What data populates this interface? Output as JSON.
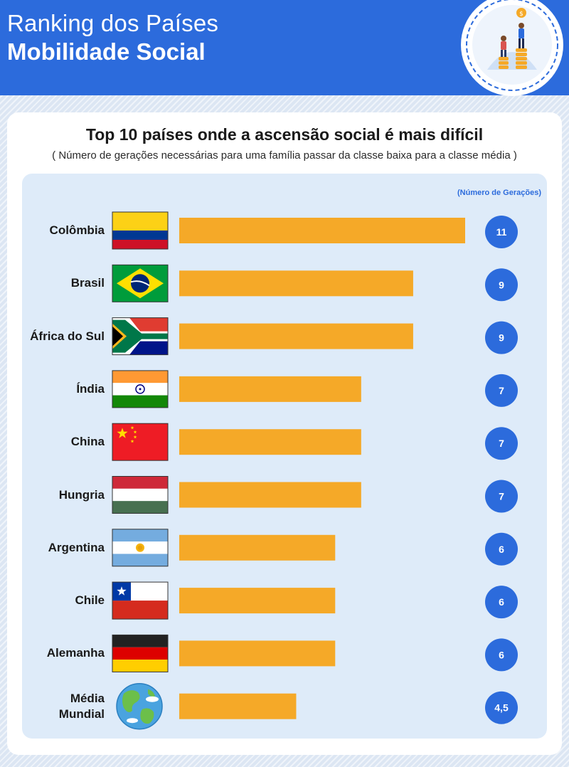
{
  "header": {
    "line1": "Ranking dos Países",
    "line2": "Mobilidade Social"
  },
  "colors": {
    "header_bg": "#2c6bdc",
    "bar": "#f5a928",
    "value_circle": "#2c6bdc",
    "panel": "#deebf9"
  },
  "chart_data": {
    "type": "bar",
    "orientation": "horizontal",
    "title": "Top 10 países onde a ascensão social é mais difícil",
    "subtitle": "( Número de gerações necessárias para uma família passar da classe baixa para a classe média )",
    "value_header": "(Número de Gerações)",
    "categories": [
      "Colômbia",
      "Brasil",
      "África do Sul",
      "Índia",
      "China",
      "Hungria",
      "Argentina",
      "Chile",
      "Alemanha",
      "Média Mundial"
    ],
    "values": [
      11,
      9,
      9,
      7,
      7,
      7,
      6,
      6,
      6,
      4.5
    ],
    "value_labels": [
      "11",
      "9",
      "9",
      "7",
      "7",
      "7",
      "6",
      "6",
      "6",
      "4,5"
    ],
    "flags": [
      "colombia-flag",
      "brazil-flag",
      "south-africa-flag",
      "india-flag",
      "china-flag",
      "hungary-flag",
      "argentina-flag",
      "chile-flag",
      "germany-flag",
      "globe-icon"
    ],
    "xlim": [
      0,
      11
    ],
    "grid": false,
    "legend": "none"
  }
}
